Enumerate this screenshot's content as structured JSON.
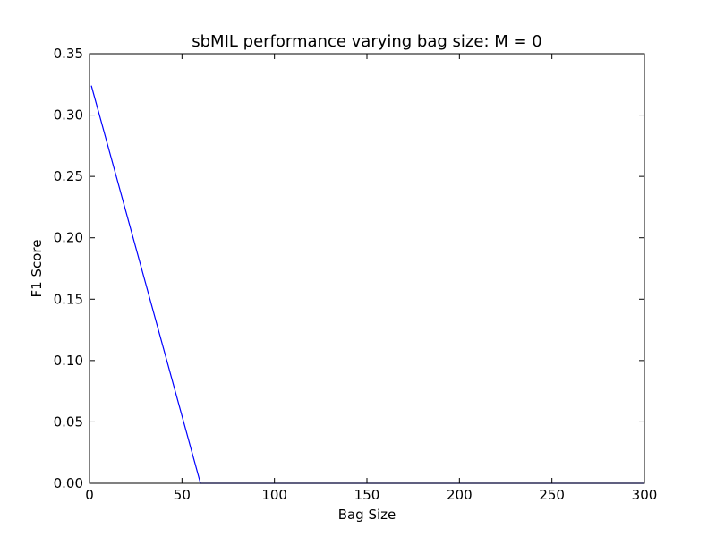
{
  "chart_data": {
    "type": "line",
    "title": "sbMIL performance varying bag size: M = 0",
    "xlabel": "Bag Size",
    "ylabel": "F1 Score",
    "xlim": [
      0,
      300
    ],
    "ylim": [
      0,
      0.35
    ],
    "xticks": [
      "0",
      "50",
      "100",
      "150",
      "200",
      "250",
      "300"
    ],
    "yticks": [
      "0.00",
      "0.05",
      "0.10",
      "0.15",
      "0.20",
      "0.25",
      "0.30",
      "0.35"
    ],
    "grid": false,
    "series": [
      {
        "color": "#0000ff",
        "x": [
          1,
          60,
          300
        ],
        "y": [
          0.324,
          0.0,
          0.0
        ]
      }
    ]
  }
}
